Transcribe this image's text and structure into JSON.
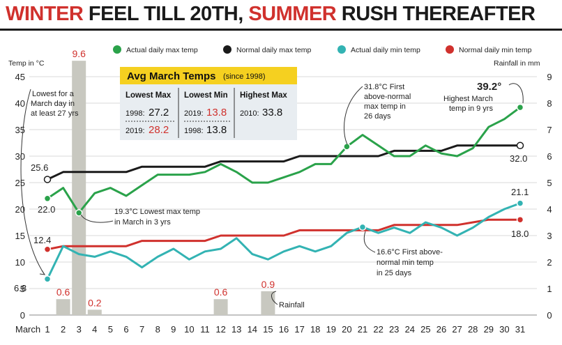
{
  "title": {
    "part1": "WINTER",
    "part2": " FEEL TILL 20TH, ",
    "part3": "SUMMER",
    "part4": " RUSH THEREAFTER"
  },
  "colors": {
    "actual_max": "#2aa24a",
    "normal_max": "#1a1a1a",
    "actual_min": "#33b3b3",
    "normal_min": "#d0312d",
    "rainfall": "#c8c8c0",
    "highlight": "#f5d020"
  },
  "chart_data": {
    "type": "line",
    "xlabel": "March",
    "ylabel": "Temp in °C",
    "y2label": "Rainfall in mm",
    "x": [
      1,
      2,
      3,
      4,
      5,
      6,
      7,
      8,
      9,
      10,
      11,
      12,
      13,
      14,
      15,
      16,
      17,
      18,
      19,
      20,
      21,
      22,
      23,
      24,
      25,
      26,
      27,
      28,
      29,
      30,
      31
    ],
    "x_ticks": [
      "1",
      "2",
      "3",
      "4",
      "5",
      "6",
      "7",
      "8",
      "9",
      "10",
      "11",
      "12",
      "13",
      "14",
      "15",
      "16",
      "17",
      "18",
      "19",
      "20",
      "21",
      "22",
      "23",
      "24",
      "25",
      "26",
      "27",
      "28",
      "29",
      "30",
      "31"
    ],
    "ylim": [
      0,
      45
    ],
    "y_ticks": [
      "0",
      "5",
      "10",
      "15",
      "20",
      "25",
      "30",
      "35",
      "40",
      "45"
    ],
    "y2lim": [
      0,
      9
    ],
    "y2_ticks": [
      "0",
      "1",
      "2",
      "3",
      "4",
      "5",
      "6",
      "7",
      "8",
      "9"
    ],
    "series": [
      {
        "name": "Actual daily max temp",
        "key": "actual_max",
        "values": [
          22.0,
          24.0,
          19.3,
          23.0,
          24.0,
          22.5,
          24.5,
          26.5,
          26.5,
          26.5,
          27.0,
          28.5,
          27.0,
          25.0,
          25.0,
          26.0,
          27.0,
          28.5,
          28.5,
          31.8,
          34.0,
          32.0,
          30.0,
          30.0,
          32.0,
          30.5,
          30.0,
          31.5,
          35.5,
          37.0,
          39.2
        ]
      },
      {
        "name": "Normal daily max temp",
        "key": "normal_max",
        "values": [
          25.6,
          27.0,
          27.0,
          27.0,
          27.0,
          27.0,
          28.0,
          28.0,
          28.0,
          28.0,
          28.0,
          29.0,
          29.0,
          29.0,
          29.0,
          29.0,
          30.0,
          30.0,
          30.0,
          30.0,
          30.0,
          30.0,
          31.0,
          31.0,
          31.0,
          31.0,
          32.0,
          32.0,
          32.0,
          32.0,
          32.0
        ]
      },
      {
        "name": "Actual daily min temp",
        "key": "actual_min",
        "values": [
          6.8,
          13.0,
          11.5,
          11.0,
          12.0,
          11.0,
          9.0,
          11.0,
          12.5,
          10.5,
          12.0,
          12.5,
          14.5,
          11.5,
          10.5,
          12.0,
          13.0,
          12.0,
          13.0,
          15.5,
          16.6,
          15.5,
          16.5,
          15.5,
          17.5,
          16.5,
          15.0,
          16.5,
          18.5,
          20.0,
          21.1
        ]
      },
      {
        "name": "Normal daily min temp",
        "key": "normal_min",
        "values": [
          12.4,
          13.0,
          13.0,
          13.0,
          13.0,
          13.0,
          14.0,
          14.0,
          14.0,
          14.0,
          14.0,
          15.0,
          15.0,
          15.0,
          15.0,
          15.0,
          16.0,
          16.0,
          16.0,
          16.0,
          16.0,
          16.0,
          17.0,
          17.0,
          17.0,
          17.0,
          17.0,
          17.5,
          18.0,
          18.0,
          18.0
        ]
      }
    ],
    "rainfall": {
      "name": "Rainfall",
      "days": [
        2,
        3,
        4,
        12,
        15
      ],
      "values": [
        0.6,
        9.6,
        0.2,
        0.6,
        0.9
      ],
      "labels": [
        "0.6",
        "9.6",
        "0.2",
        "0.6",
        "0.9"
      ]
    },
    "legend": {
      "position": "top",
      "items": [
        "Actual daily max temp",
        "Normal daily max temp",
        "Actual daily min temp",
        "Normal daily min temp"
      ]
    },
    "value_labels": {
      "am_start": "22.0",
      "nm_start": "25.6",
      "nm_end": "32.0",
      "an_start": "6.8",
      "an_end": "21.1",
      "nn_start": "12.4",
      "nn_end": "18.0",
      "am_end": "39.2°"
    },
    "annotations": {
      "lowest_day": [
        "Lowest for a",
        "March day in",
        "at least 27 yrs"
      ],
      "lowest_max": [
        "19.3°C Lowest max temp",
        "in March in 3 yrs"
      ],
      "first_above_max": [
        "31.8°C First",
        "above-normal",
        "max temp in",
        "26 days"
      ],
      "highest": [
        "Highest March",
        "temp in 9 yrs"
      ],
      "first_above_min": [
        "16.6°C First above-",
        "normal min temp",
        "in 25 days"
      ],
      "rainfall": "Rainfall"
    },
    "info_box": {
      "title": "Avg March Temps",
      "subtitle": "(since 1998)",
      "col1_header": "Lowest Max",
      "col2_header": "Lowest Min",
      "col3_header": "Highest Max",
      "r1c1_year": "1998:",
      "r1c1_val": "27.2",
      "r2c1_year": "2019:",
      "r2c1_val": "28.2",
      "r1c2_year": "2019:",
      "r1c2_val": "13.8",
      "r2c2_year": "1998:",
      "r2c2_val": "13.8",
      "r1c3_year": "2010:",
      "r1c3_val": "33.8"
    }
  }
}
